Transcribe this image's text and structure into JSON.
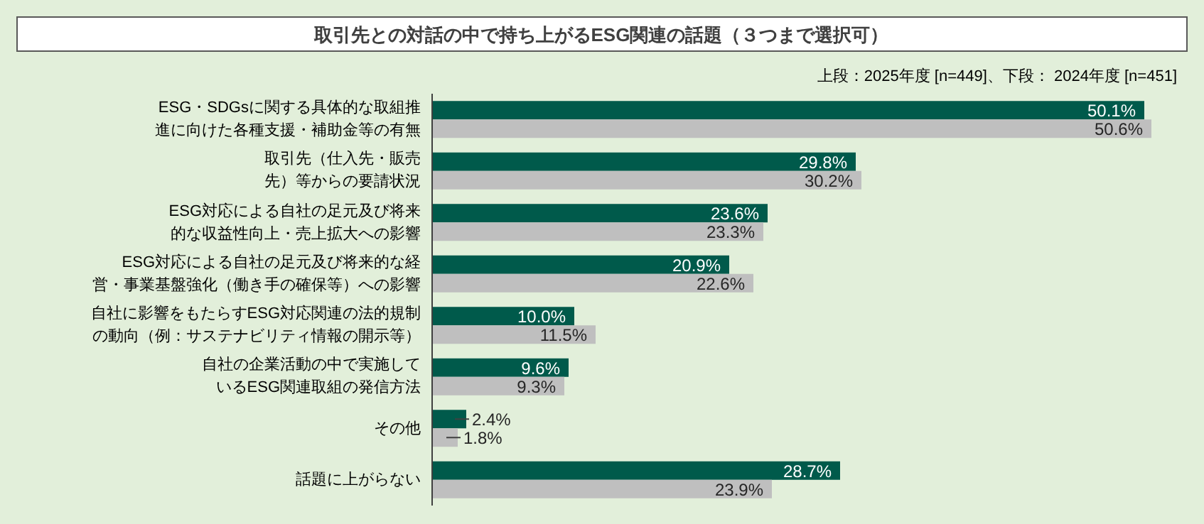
{
  "chart_data": {
    "type": "bar",
    "orientation": "horizontal",
    "title": "取引先との対話の中で持ち上がるESG関連の話題（３つまで選択可）",
    "subtitle": "上段：2025年度 [n=449]、下段： 2024年度 [n=451]",
    "categories": [
      "ESG・SDGsに関する具体的な取組推進に向けた各種支援・補助金等の有無",
      "取引先（仕入先・販売先）等からの要請状況",
      "ESG対応による自社の足元及び将来的な収益性向上・売上拡大への影響",
      "ESG対応による自社の足元及び将来的な経営・事業基盤強化（働き手の確保等）への影響",
      "自社に影響をもたらすESG対応関連の法的規制の動向（例：サステナビリティ情報の開示等）",
      "自社の企業活動の中で実施しているESG関連取組の発信方法",
      "その他",
      "話題に上がらない"
    ],
    "series": [
      {
        "color": "#005a4b",
        "values": [
          50.1,
          29.8,
          23.6,
          20.9,
          10.0,
          9.6,
          2.4,
          28.7
        ],
        "value_labels": [
          "50.1%",
          "29.8%",
          "23.6%",
          "20.9%",
          "10.0%",
          "9.6%",
          "2.4%",
          "28.7%"
        ]
      },
      {
        "color": "#bfbfbf",
        "values": [
          50.6,
          30.2,
          23.3,
          22.6,
          11.5,
          9.3,
          1.8,
          23.9
        ],
        "value_labels": [
          "50.6%",
          "30.2%",
          "23.3%",
          "22.6%",
          "11.5%",
          "9.3%",
          "1.8%",
          "23.9%"
        ]
      }
    ]
  }
}
